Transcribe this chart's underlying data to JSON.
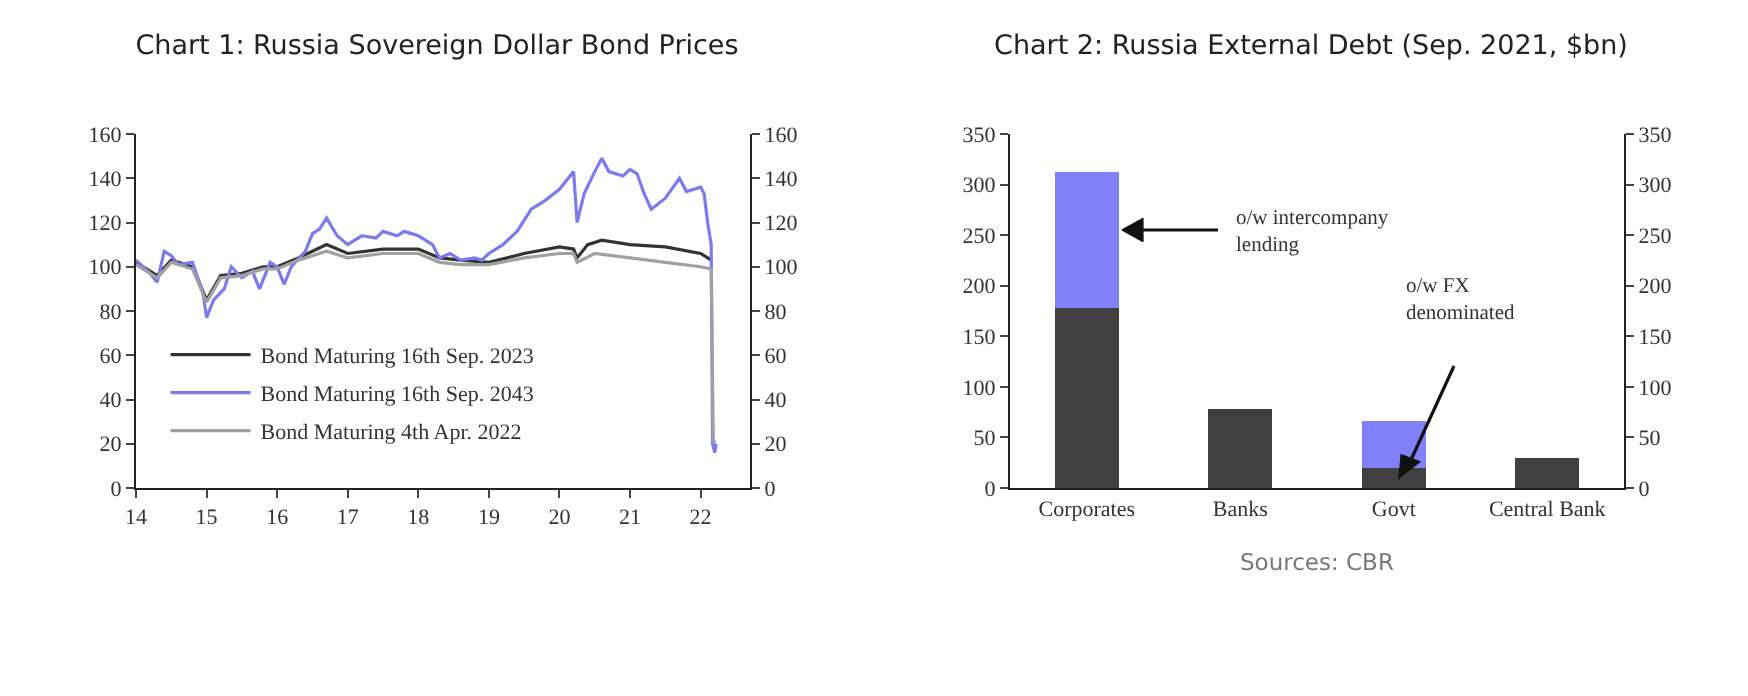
{
  "chart_data": [
    {
      "type": "line",
      "title": "Chart 1: Russia Sovereign Dollar Bond Prices",
      "xlim": [
        14,
        22.7
      ],
      "xticks": [
        14,
        15,
        16,
        17,
        18,
        19,
        20,
        21,
        22
      ],
      "ylim": [
        0,
        160
      ],
      "yticks": [
        0,
        20,
        40,
        60,
        80,
        100,
        120,
        140,
        160
      ],
      "y2lim": [
        0,
        160
      ],
      "y2ticks": [
        0,
        20,
        40,
        60,
        80,
        100,
        120,
        140,
        160
      ],
      "legend": "bottom left",
      "series": [
        {
          "name": "Bond Maturing 16th Sep. 2023",
          "color": "#333333",
          "x": [
            14.0,
            14.3,
            14.5,
            14.8,
            15.0,
            15.2,
            15.5,
            15.8,
            16.0,
            16.3,
            16.7,
            17.0,
            17.5,
            18.0,
            18.3,
            18.6,
            19.0,
            19.5,
            20.0,
            20.2,
            20.25,
            20.4,
            20.6,
            21.0,
            21.5,
            22.0,
            22.1,
            22.15
          ],
          "values": [
            102,
            96,
            103,
            100,
            85,
            96,
            97,
            100,
            100,
            104,
            110,
            106,
            108,
            108,
            104,
            103,
            102,
            106,
            109,
            108,
            104,
            110,
            112,
            110,
            109,
            106,
            104,
            103
          ]
        },
        {
          "name": "Bond Maturing 16th Sep. 2043",
          "color": "#7b7bef",
          "x": [
            14.0,
            14.2,
            14.3,
            14.4,
            14.5,
            14.6,
            14.8,
            14.95,
            15.0,
            15.1,
            15.25,
            15.35,
            15.5,
            15.65,
            15.75,
            15.9,
            16.0,
            16.1,
            16.2,
            16.4,
            16.5,
            16.6,
            16.7,
            16.85,
            17.0,
            17.2,
            17.4,
            17.5,
            17.7,
            17.8,
            18.0,
            18.1,
            18.2,
            18.3,
            18.45,
            18.6,
            18.8,
            18.9,
            19.0,
            19.2,
            19.4,
            19.6,
            19.8,
            20.0,
            20.2,
            20.25,
            20.35,
            20.5,
            20.6,
            20.7,
            20.9,
            21.0,
            21.1,
            21.2,
            21.3,
            21.5,
            21.7,
            21.8,
            22.0,
            22.05,
            22.1,
            22.15,
            22.17,
            22.2,
            22.22
          ],
          "values": [
            103,
            97,
            93,
            107,
            105,
            101,
            102,
            88,
            77,
            85,
            90,
            100,
            95,
            98,
            90,
            102,
            100,
            92,
            100,
            107,
            115,
            117,
            122,
            114,
            110,
            114,
            113,
            116,
            114,
            116,
            114,
            112,
            110,
            104,
            106,
            103,
            104,
            103,
            106,
            110,
            116,
            126,
            130,
            135,
            143,
            120,
            133,
            143,
            149,
            143,
            141,
            144,
            142,
            133,
            126,
            131,
            140,
            134,
            136,
            133,
            120,
            110,
            20,
            16,
            20
          ]
        },
        {
          "name": "Bond Maturing 4th Apr. 2022",
          "color": "#a0a0a0",
          "x": [
            14.0,
            14.3,
            14.5,
            14.8,
            15.0,
            15.2,
            15.5,
            15.8,
            16.0,
            16.3,
            16.7,
            17.0,
            17.5,
            18.0,
            18.3,
            18.6,
            19.0,
            19.5,
            20.0,
            20.2,
            20.25,
            20.5,
            21.0,
            21.5,
            22.0,
            22.15,
            22.18,
            22.2
          ],
          "values": [
            101,
            95,
            102,
            99,
            84,
            95,
            96,
            99,
            99,
            103,
            107,
            104,
            106,
            106,
            102,
            101,
            101,
            104,
            106,
            106,
            102,
            106,
            104,
            102,
            100,
            99,
            22,
            20
          ]
        }
      ]
    },
    {
      "type": "bar",
      "title": "Chart 2: Russia External Debt (Sep. 2021, $bn)",
      "stacked": true,
      "categories": [
        "Corporates",
        "Banks",
        "Govt",
        "Central Bank"
      ],
      "ylim": [
        0,
        350
      ],
      "yticks": [
        0,
        50,
        100,
        150,
        200,
        250,
        300,
        350
      ],
      "y2lim": [
        0,
        350
      ],
      "y2ticks": [
        0,
        50,
        100,
        150,
        200,
        250,
        300,
        350
      ],
      "annotations": [
        "o/w intercompany lending",
        "o/w FX denominated",
        "Sources: CBR"
      ],
      "series": [
        {
          "color": "#404040",
          "values": [
            178,
            78,
            20,
            30
          ]
        },
        {
          "color": "#8080f8",
          "values": [
            134,
            0,
            46,
            0
          ]
        }
      ]
    }
  ]
}
